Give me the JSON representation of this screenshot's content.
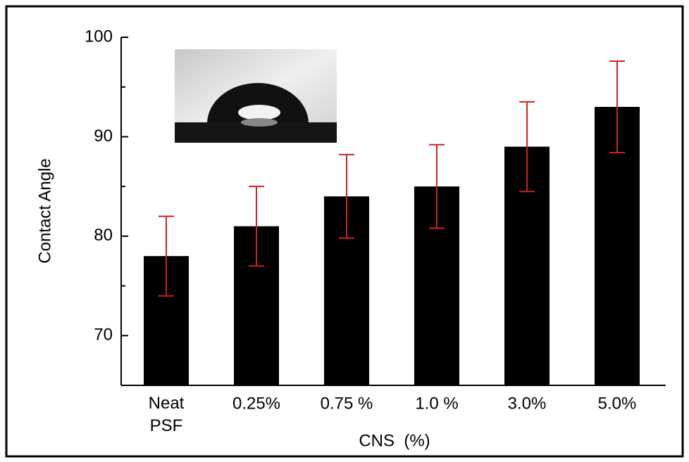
{
  "chart_data": {
    "type": "bar",
    "x_label": "CNS  (%)",
    "y_label": "Contact Angle",
    "categories": [
      "Neat\nPSF",
      "0.25%",
      "0.75 %",
      "1.0 %",
      "3.0%",
      "5.0%"
    ],
    "values": [
      78,
      81,
      84,
      85,
      89,
      93
    ],
    "errors": [
      4,
      4,
      4.2,
      4.2,
      4.5,
      4.6
    ],
    "color": "#000000",
    "error_color": "#cc2222",
    "ylim": [
      65,
      100
    ],
    "yticks": [
      70,
      80,
      90,
      100
    ],
    "minor_yticks": [
      75,
      85,
      95
    ],
    "grid": false
  }
}
